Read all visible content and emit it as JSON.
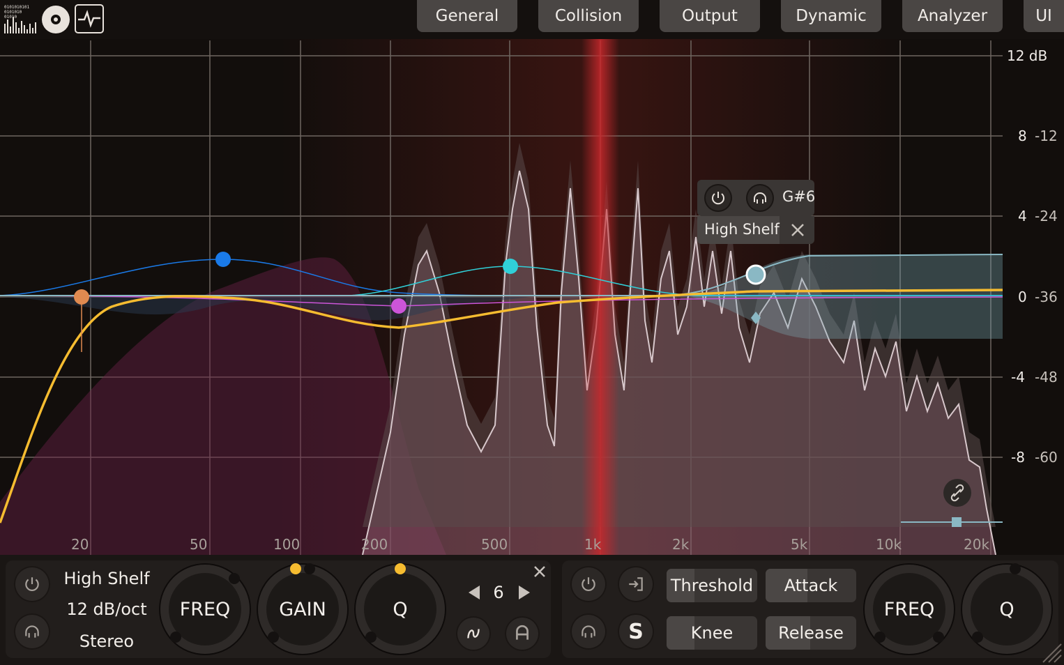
{
  "tabs": [
    "General",
    "Collision",
    "Output",
    "Dynamic",
    "Analyzer",
    "UI"
  ],
  "graph": {
    "db_labels": [
      "12 dB",
      "8",
      "4",
      "0",
      "-4",
      "-8"
    ],
    "analyzer_labels": [
      "-12",
      "-24",
      "-36",
      "-48",
      "-60"
    ],
    "freq_labels": [
      "20",
      "50",
      "100",
      "200",
      "500",
      "1k",
      "2k",
      "5k",
      "10k",
      "20k"
    ]
  },
  "popup": {
    "note": "G#6",
    "band_type": "High Shelf"
  },
  "left_panel": {
    "filter_type": "High Shelf",
    "slope": "12 dB/oct",
    "mode": "Stereo",
    "knob_freq": "FREQ",
    "knob_gain": "GAIN",
    "knob_q": "Q",
    "band_number": "6"
  },
  "right_panel": {
    "threshold": "Threshold",
    "attack": "Attack",
    "knee": "Knee",
    "release": "Release",
    "knob_freq": "FREQ",
    "knob_q": "Q",
    "side_label": "S"
  },
  "colors": {
    "orange": "#e08a50",
    "blue": "#1a7ae8",
    "magenta": "#cc55d8",
    "cyan": "#30d0d8",
    "teal": "#8ab8c4",
    "yellow": "#f6bc30",
    "red_band": "#c8282c"
  },
  "icons": {
    "power": "power-icon",
    "headphones": "headphones-icon",
    "close": "close-icon",
    "arrow_left": "arrow-left-icon",
    "arrow_right": "arrow-right-icon",
    "wave": "wave-icon",
    "auto": "auto-icon",
    "sidechain": "sidechain-icon",
    "link": "link-icon",
    "logo": "logo-icon"
  }
}
